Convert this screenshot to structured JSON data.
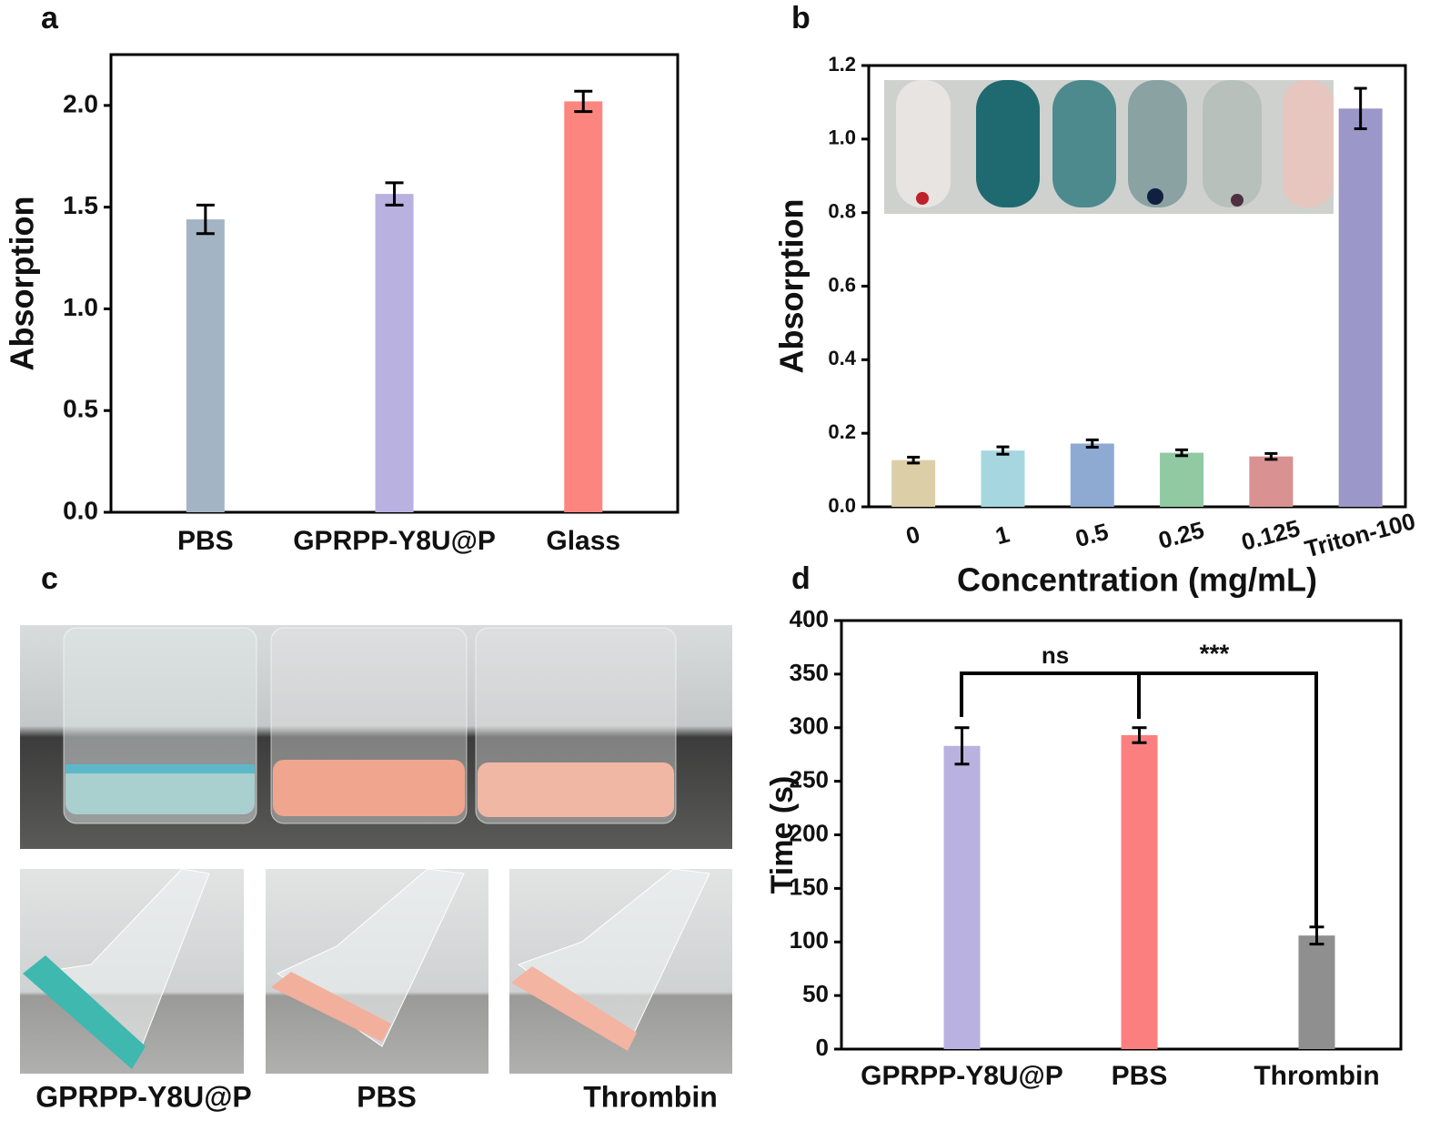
{
  "chart_data": [
    {
      "type": "bar",
      "panel": "a",
      "ylabel": "Absorption",
      "categories": [
        "PBS",
        "GPRPP-Y8U@P",
        "Glass"
      ],
      "values": [
        1.44,
        1.565,
        2.02
      ],
      "errors": [
        0.07,
        0.055,
        0.05
      ],
      "colors": [
        "#a3b4c4",
        "#b9b2e0",
        "#fc8580"
      ],
      "ylim": [
        0,
        2.25
      ],
      "yticks": [
        {
          "value": 0,
          "label": "0.0"
        },
        {
          "value": 0.5,
          "label": "0.5"
        },
        {
          "value": 1,
          "label": "1.0"
        },
        {
          "value": 1.5,
          "label": "1.5"
        },
        {
          "value": 2,
          "label": "2.0"
        }
      ]
    },
    {
      "type": "bar",
      "panel": "b",
      "ylabel": "Absorption",
      "xlabel": "Concentration (mg/mL)",
      "categories": [
        "0",
        "1",
        "0.5",
        "0.25",
        "0.125",
        "Triton-100"
      ],
      "values": [
        0.127,
        0.153,
        0.172,
        0.147,
        0.137,
        1.083
      ],
      "errors": [
        0.008,
        0.01,
        0.01,
        0.008,
        0.008,
        0.055
      ],
      "colors": [
        "#dccfa8",
        "#a6d7e0",
        "#8eaad2",
        "#90c9a2",
        "#d99192",
        "#9c97c9"
      ],
      "ylim": [
        0,
        1.2
      ],
      "yticks": [
        {
          "value": 0,
          "label": "0.0"
        },
        0.2,
        0.4,
        0.6,
        0.8,
        {
          "value": 1,
          "label": "1.0"
        },
        {
          "value": 1.2,
          "label": "1.2"
        }
      ]
    },
    {
      "type": "bar",
      "panel": "d",
      "ylabel": "Time (s)",
      "categories": [
        "GPRPP-Y8U@P",
        "PBS",
        "Thrombin"
      ],
      "values": [
        283,
        293,
        106
      ],
      "errors": [
        17,
        7,
        8
      ],
      "colors": [
        "#b9b2e0",
        "#fc7f7f",
        "#8f8f8f"
      ],
      "ylim": [
        0,
        400
      ],
      "yticks": [
        0,
        50,
        100,
        150,
        200,
        250,
        300,
        350,
        400
      ],
      "annotations": [
        "ns",
        "***"
      ]
    }
  ],
  "photo_panel": {
    "panel": "c",
    "captions": [
      "GPRPP-Y8U@P",
      "PBS",
      "Thrombin"
    ]
  }
}
